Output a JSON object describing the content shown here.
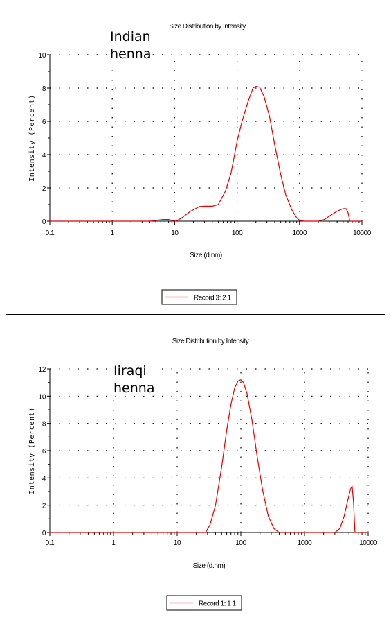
{
  "chart_data": [
    {
      "type": "line",
      "title": "Size Distribution by Intensity",
      "annotation": "Indian\nhenna",
      "xlabel": "Size (d.nm)",
      "ylabel": "Intensity (Percent)",
      "xscale": "log",
      "xlim": [
        0.1,
        10000
      ],
      "ylim": [
        0,
        10
      ],
      "xticks": [
        "0.1",
        "1",
        "10",
        "100",
        "1000",
        "10000"
      ],
      "yticks": [
        "0",
        "2",
        "4",
        "6",
        "8",
        "10"
      ],
      "grid": true,
      "legend": "bottom-center",
      "color": "#e00000",
      "series": [
        {
          "name": "Record 3: 2 1",
          "x": [
            0.1,
            4,
            5,
            6.5,
            8,
            9,
            10.5,
            13,
            18,
            25,
            30,
            40,
            50,
            65,
            80,
            100,
            120,
            150,
            180,
            200,
            230,
            270,
            330,
            400,
            500,
            600,
            750,
            900,
            1000,
            1200,
            2000,
            2500,
            3000,
            4000,
            5000,
            5600,
            6000,
            6400,
            10000
          ],
          "y": [
            0,
            0,
            0.05,
            0.1,
            0.1,
            0.05,
            0.0,
            0.2,
            0.6,
            0.88,
            0.9,
            0.9,
            1.0,
            1.8,
            2.9,
            4.8,
            6.0,
            7.2,
            8.0,
            8.1,
            8.05,
            7.5,
            6.3,
            4.6,
            2.8,
            1.6,
            0.7,
            0.2,
            0.05,
            0,
            0,
            0.1,
            0.3,
            0.6,
            0.75,
            0.75,
            0.5,
            0,
            0
          ]
        }
      ]
    },
    {
      "type": "line",
      "title": "Size Distribution by Intensity",
      "annotation": "Iiraqi\nhenna",
      "xlabel": "Size (d.nm)",
      "ylabel": "Intensity (Percent)",
      "xscale": "log",
      "xlim": [
        0.1,
        10000
      ],
      "ylim": [
        0,
        12
      ],
      "xticks": [
        "0.1",
        "1",
        "10",
        "100",
        "1000",
        "10000"
      ],
      "yticks": [
        "0",
        "2",
        "4",
        "6",
        "8",
        "10",
        "12"
      ],
      "grid": true,
      "legend": "bottom-center",
      "color": "#e00000",
      "series": [
        {
          "name": "Record 1: 1 1",
          "x": [
            0.1,
            28,
            33,
            40,
            50,
            60,
            70,
            80,
            90,
            100,
            110,
            125,
            150,
            180,
            220,
            270,
            330,
            400,
            3000,
            3600,
            4200,
            4800,
            5300,
            5600,
            5900,
            6200,
            10000
          ],
          "y": [
            0,
            0,
            0.6,
            2.0,
            4.8,
            7.5,
            9.4,
            10.6,
            11.1,
            11.2,
            11.0,
            10.2,
            8.2,
            5.6,
            3.1,
            1.2,
            0.3,
            0,
            0,
            0.3,
            1.2,
            2.4,
            3.2,
            3.4,
            2.2,
            0,
            0
          ]
        }
      ]
    }
  ]
}
